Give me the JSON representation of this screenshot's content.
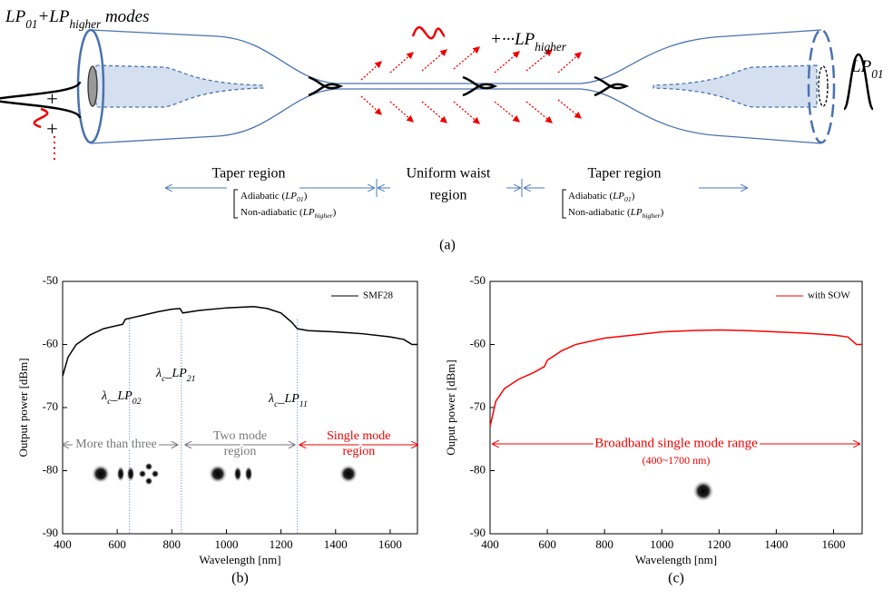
{
  "diagram": {
    "input_label": [
      "LP",
      "01",
      "+LP",
      "higher",
      " modes"
    ],
    "higher_label": [
      "+",
      "···LP",
      "higher"
    ],
    "output_label": [
      "LP",
      "01"
    ],
    "left_taper": {
      "title": "Taper region",
      "adiabatic": [
        "Adiabatic (",
        "LP",
        "01",
        ")"
      ],
      "nonadiabatic": [
        "Non-adiabatic (",
        "LP",
        "higher",
        ")"
      ]
    },
    "waist": {
      "line1": "Uniform waist",
      "line2": "region"
    },
    "right_taper": {
      "title": "Taper region",
      "adiabatic": [
        "Adiabatic (",
        "LP",
        "01",
        ")"
      ],
      "nonadiabatic": [
        "Non-adiabatic (",
        "LP",
        "higher",
        ")"
      ]
    },
    "caption": "(a)"
  },
  "chart_data": [
    {
      "type": "line",
      "caption": "(b)",
      "x_label": "Wavelength [nm]",
      "y_label": "Output power [dBm]",
      "xlim": [
        400,
        1700
      ],
      "xticks": [
        400,
        600,
        800,
        1000,
        1200,
        1400,
        1600
      ],
      "ylim": [
        -90,
        -50
      ],
      "yticks": [
        -90,
        -80,
        -70,
        -60,
        -50
      ],
      "x": [
        400,
        420,
        450,
        500,
        550,
        600,
        620,
        630,
        650,
        700,
        750,
        800,
        830,
        840,
        900,
        1000,
        1100,
        1150,
        1200,
        1240,
        1260,
        1300,
        1400,
        1500,
        1600,
        1650,
        1680,
        1700
      ],
      "series": [
        {
          "name": "SMF28",
          "color": "#000000",
          "values": [
            -65,
            -62,
            -60,
            -58.5,
            -57.5,
            -57,
            -56.8,
            -56,
            -55.8,
            -55.3,
            -54.8,
            -54.4,
            -54.3,
            -55,
            -54.6,
            -54.2,
            -54,
            -54.3,
            -55,
            -56.5,
            -57.5,
            -57.8,
            -58,
            -58.3,
            -58.8,
            -59.2,
            -60,
            -60
          ]
        }
      ],
      "cutoffs": [
        {
          "value": 645,
          "label": [
            "λ",
            "c",
            "_LP",
            "02"
          ]
        },
        {
          "value": 835,
          "label": [
            "λ",
            "c",
            "_LP",
            "21"
          ]
        },
        {
          "value": 1260,
          "label": [
            "λ",
            "c",
            "_LP",
            "11"
          ]
        }
      ],
      "regions": [
        [
          "More than three"
        ],
        [
          "Two mode",
          "region"
        ],
        [
          "Single mode",
          "region"
        ]
      ]
    },
    {
      "type": "line",
      "caption": "(c)",
      "x_label": "Wavelength [nm]",
      "y_label": "Ouput power [dBm]",
      "xlim": [
        400,
        1700
      ],
      "xticks": [
        400,
        600,
        800,
        1000,
        1200,
        1400,
        1600
      ],
      "ylim": [
        -90,
        -50
      ],
      "yticks": [
        -90,
        -80,
        -70,
        -60,
        -50
      ],
      "x": [
        400,
        420,
        450,
        500,
        550,
        590,
        600,
        650,
        700,
        800,
        900,
        1000,
        1100,
        1200,
        1300,
        1400,
        1500,
        1600,
        1650,
        1680,
        1700
      ],
      "series": [
        {
          "name": "with SOW",
          "color": "#ff0000",
          "values": [
            -73,
            -69,
            -67,
            -65.5,
            -64.5,
            -63.5,
            -62.5,
            -61,
            -60,
            -59,
            -58.5,
            -58,
            -57.8,
            -57.7,
            -57.8,
            -58,
            -58.2,
            -58.5,
            -58.8,
            -60,
            -60
          ]
        }
      ],
      "annotation": [
        "Broadband  single mode range",
        "(400~1700 nm)"
      ]
    }
  ]
}
